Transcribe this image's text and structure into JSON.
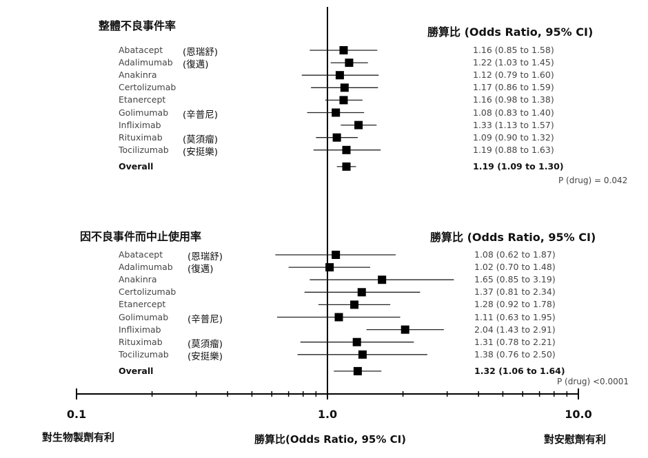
{
  "sections": [
    {
      "title": "整體不良事件率",
      "or_header": "勝算比 (Odds Ratio, 95% CI)",
      "p_value": "P (drug) = 0.042",
      "rows": [
        {
          "drug": "Abatacept",
          "zh": "(恩瑞舒)",
          "or": 1.16,
          "lo": 0.85,
          "hi": 1.58,
          "text": "1.16 (0.85 to 1.58)"
        },
        {
          "drug": "Adalimumab",
          "zh": "(復邁)",
          "or": 1.22,
          "lo": 1.03,
          "hi": 1.45,
          "text": "1.22 (1.03 to 1.45)"
        },
        {
          "drug": "Anakinra",
          "zh": "",
          "or": 1.12,
          "lo": 0.79,
          "hi": 1.6,
          "text": "1.12 (0.79 to 1.60)"
        },
        {
          "drug": "Certolizumab",
          "zh": "",
          "or": 1.17,
          "lo": 0.86,
          "hi": 1.59,
          "text": "1.17 (0.86 to 1.59)"
        },
        {
          "drug": "Etanercept",
          "zh": "",
          "or": 1.16,
          "lo": 0.98,
          "hi": 1.38,
          "text": "1.16 (0.98 to 1.38)"
        },
        {
          "drug": "Golimumab",
          "zh": "(辛普尼)",
          "or": 1.08,
          "lo": 0.83,
          "hi": 1.4,
          "text": "1.08 (0.83 to 1.40)"
        },
        {
          "drug": "Infliximab",
          "zh": "",
          "or": 1.33,
          "lo": 1.13,
          "hi": 1.57,
          "text": "1.33 (1.13 to 1.57)"
        },
        {
          "drug": "Rituximab",
          "zh": "(莫須瘤)",
          "or": 1.09,
          "lo": 0.9,
          "hi": 1.32,
          "text": "1.09 (0.90 to 1.32)"
        },
        {
          "drug": "Tocilizumab",
          "zh": "(安挺樂)",
          "or": 1.19,
          "lo": 0.88,
          "hi": 1.63,
          "text": "1.19 (0.88 to 1.63)"
        },
        {
          "drug": "Overall",
          "zh": "",
          "or": 1.19,
          "lo": 1.09,
          "hi": 1.3,
          "text": "1.19 (1.09 to 1.30)",
          "overall": true
        }
      ]
    },
    {
      "title": "因不良事件而中止使用率",
      "or_header": "勝算比 (Odds Ratio, 95% CI)",
      "p_value": "P (drug) <0.0001",
      "rows": [
        {
          "drug": "Abatacept",
          "zh": "(恩瑞舒)",
          "or": 1.08,
          "lo": 0.62,
          "hi": 1.87,
          "text": "1.08 (0.62 to 1.87)"
        },
        {
          "drug": "Adalimumab",
          "zh": "(復邁)",
          "or": 1.02,
          "lo": 0.7,
          "hi": 1.48,
          "text": "1.02 (0.70 to 1.48)"
        },
        {
          "drug": "Anakinra",
          "zh": "",
          "or": 1.65,
          "lo": 0.85,
          "hi": 3.19,
          "text": "1.65 (0.85 to 3.19)"
        },
        {
          "drug": "Certolizumab",
          "zh": "",
          "or": 1.37,
          "lo": 0.81,
          "hi": 2.34,
          "text": "1.37 (0.81 to 2.34)"
        },
        {
          "drug": "Etanercept",
          "zh": "",
          "or": 1.28,
          "lo": 0.92,
          "hi": 1.78,
          "text": "1.28 (0.92 to 1.78)"
        },
        {
          "drug": "Golimumab",
          "zh": "(辛普尼)",
          "or": 1.11,
          "lo": 0.63,
          "hi": 1.95,
          "text": "1.11 (0.63 to 1.95)"
        },
        {
          "drug": "Infliximab",
          "zh": "",
          "or": 2.04,
          "lo": 1.43,
          "hi": 2.91,
          "text": "2.04 (1.43 to 2.91)"
        },
        {
          "drug": "Rituximab",
          "zh": "(莫須瘤)",
          "or": 1.31,
          "lo": 0.78,
          "hi": 2.21,
          "text": "1.31 (0.78 to 2.21)"
        },
        {
          "drug": "Tocilizumab",
          "zh": "(安挺樂)",
          "or": 1.38,
          "lo": 0.76,
          "hi": 2.5,
          "text": "1.38 (0.76 to 2.50)"
        },
        {
          "drug": "Overall",
          "zh": "",
          "or": 1.32,
          "lo": 1.06,
          "hi": 1.64,
          "text": "1.32 (1.06 to 1.64)",
          "overall": true
        }
      ]
    }
  ],
  "axis": {
    "scale": "log",
    "xlim": [
      0.1,
      10.0
    ],
    "reference_line": 1.0,
    "tick_labels": [
      "0.1",
      "1.0",
      "10.0"
    ]
  },
  "bottom": {
    "left": "對生物製劑有利",
    "center": "勝算比(Odds Ratio, 95% CI)",
    "right": "對安慰劑有利"
  },
  "chart_data": {
    "type": "forest",
    "xscale": "log",
    "xlim": [
      0.1,
      10.0
    ],
    "reference": 1.0
  }
}
